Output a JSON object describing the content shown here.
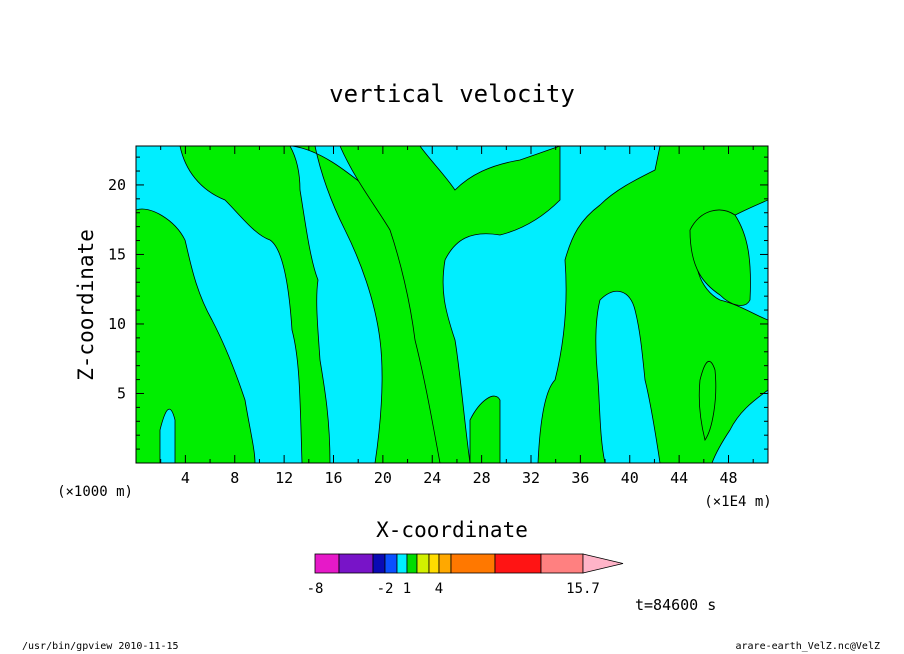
{
  "chart_data": {
    "type": "heatmap",
    "title": "vertical velocity",
    "xlabel": "X-coordinate",
    "ylabel": "Z-coordinate",
    "x_unit_left": "(×1000 m)",
    "x_unit_right": "(×1E4 m)",
    "x_ticks": [
      "4",
      "8",
      "12",
      "16",
      "20",
      "24",
      "28",
      "32",
      "36",
      "40",
      "44",
      "48"
    ],
    "y_ticks": [
      "5",
      "10",
      "15",
      "20"
    ],
    "xlim": [
      0,
      51.2
    ],
    "ylim": [
      0,
      22.8
    ],
    "series": [
      {
        "fill": "#00eeff",
        "shown_as": "background (negative bins)"
      },
      {
        "fill": "#00ee00",
        "shown_as": "updraft regions (positive bins)"
      }
    ],
    "colorbar": {
      "colors": [
        "#e619c8",
        "#7814c8",
        "#0a0ab4",
        "#0a50ff",
        "#00eeff",
        "#00dc00",
        "#d2f000",
        "#ffdc00",
        "#ffa800",
        "#ff7800",
        "#ff1414",
        "#ff8080",
        "#ffb4c8"
      ],
      "tick_labels": [
        "-8",
        "-2",
        "1",
        "4",
        "15.7"
      ]
    },
    "time_label": "t=84600 s",
    "grid": false
  },
  "footer": {
    "left": "/usr/bin/gpview   2010-11-15",
    "right": "arare-earth_VelZ.nc@VelZ"
  }
}
